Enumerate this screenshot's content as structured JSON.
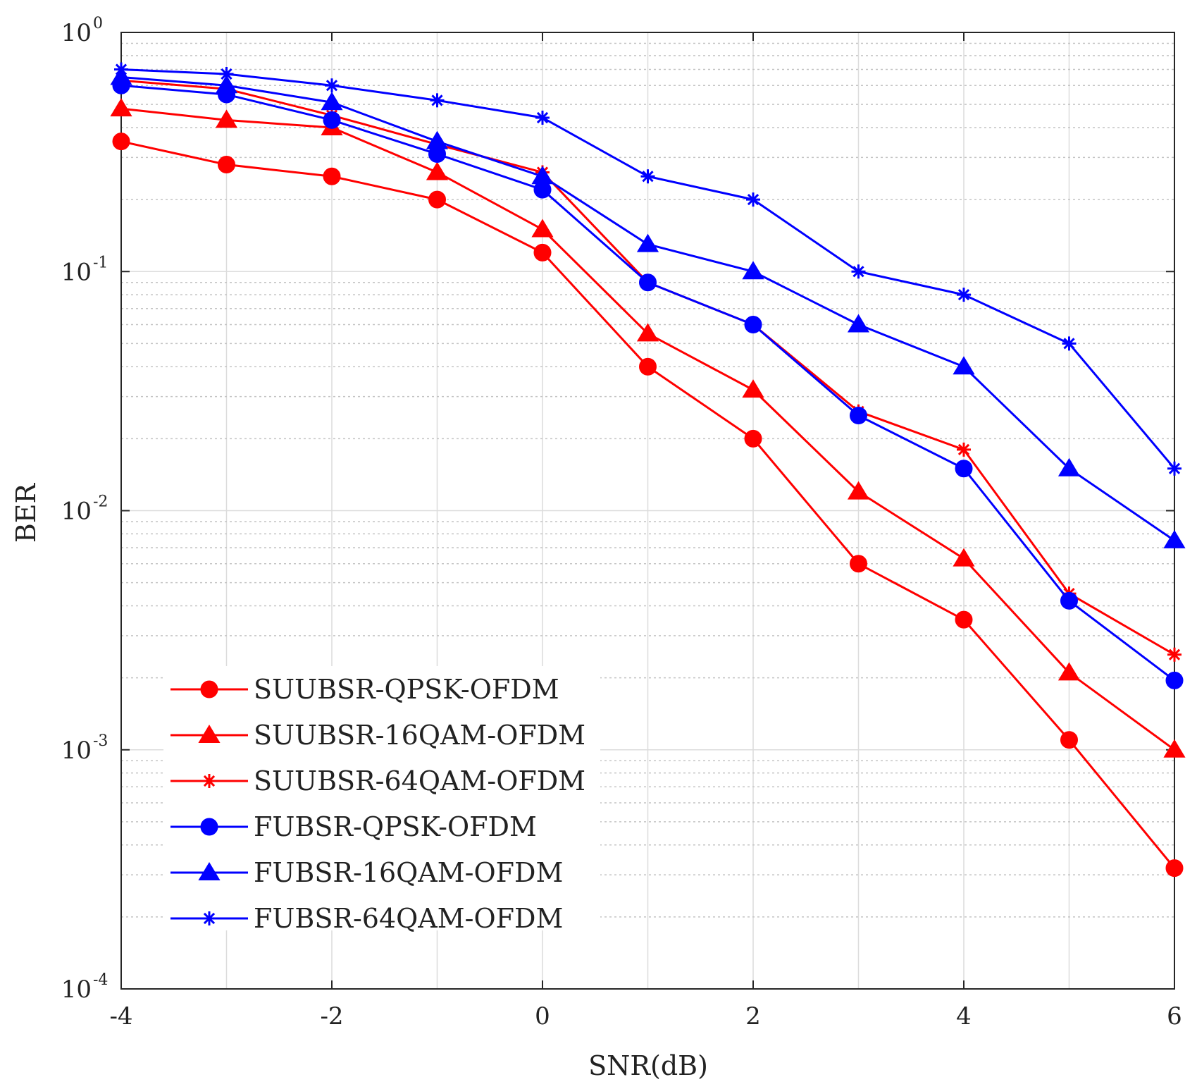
{
  "chart_data": {
    "type": "line",
    "xlabel": "SNR(dB)",
    "ylabel": "BER",
    "yscale": "log",
    "xlim": [
      -4,
      6
    ],
    "ylim": [
      0.0001,
      1
    ],
    "grid": true,
    "legend_position": "bottom-left",
    "x": [
      -4,
      -3,
      -2,
      -1,
      0,
      1,
      2,
      3,
      4,
      5,
      6
    ],
    "x_ticks": [
      {
        "value": -4,
        "label": "-4"
      },
      {
        "value": -2,
        "label": "-2"
      },
      {
        "value": 0,
        "label": "0"
      },
      {
        "value": 2,
        "label": "2"
      },
      {
        "value": 4,
        "label": "4"
      },
      {
        "value": 6,
        "label": "6"
      }
    ],
    "y_ticks": [
      {
        "value": 1,
        "base": "10",
        "exp": "0"
      },
      {
        "value": 0.1,
        "base": "10",
        "exp": "-1"
      },
      {
        "value": 0.01,
        "base": "10",
        "exp": "-2"
      },
      {
        "value": 0.001,
        "base": "10",
        "exp": "-3"
      },
      {
        "value": 0.0001,
        "base": "10",
        "exp": "-4"
      }
    ],
    "series": [
      {
        "name": "SUUBSR-QPSK-OFDM",
        "color": "#ff0000",
        "marker": "circle",
        "values": [
          0.35,
          0.28,
          0.25,
          0.2,
          0.12,
          0.04,
          0.02,
          0.006,
          0.0035,
          0.0011,
          0.00032
        ]
      },
      {
        "name": "SUUBSR-16QAM-OFDM",
        "color": "#ff0000",
        "marker": "triangle",
        "values": [
          0.48,
          0.43,
          0.4,
          0.26,
          0.15,
          0.055,
          0.032,
          0.012,
          0.0063,
          0.0021,
          0.001
        ]
      },
      {
        "name": "SUUBSR-64QAM-OFDM",
        "color": "#ff0000",
        "marker": "star",
        "values": [
          0.63,
          0.58,
          0.45,
          0.34,
          0.26,
          0.09,
          0.06,
          0.026,
          0.018,
          0.0045,
          0.0025
        ]
      },
      {
        "name": "FUBSR-QPSK-OFDM",
        "color": "#0000ff",
        "marker": "circle",
        "values": [
          0.6,
          0.55,
          0.43,
          0.31,
          0.22,
          0.09,
          0.06,
          0.025,
          0.015,
          0.0042,
          0.00195
        ]
      },
      {
        "name": "FUBSR-16QAM-OFDM",
        "color": "#0000ff",
        "marker": "triangle",
        "values": [
          0.65,
          0.6,
          0.51,
          0.35,
          0.25,
          0.13,
          0.1,
          0.06,
          0.04,
          0.015,
          0.0075
        ]
      },
      {
        "name": "FUBSR-64QAM-OFDM",
        "color": "#0000ff",
        "marker": "star",
        "values": [
          0.7,
          0.67,
          0.6,
          0.52,
          0.44,
          0.25,
          0.2,
          0.1,
          0.08,
          0.05,
          0.015
        ]
      }
    ]
  }
}
